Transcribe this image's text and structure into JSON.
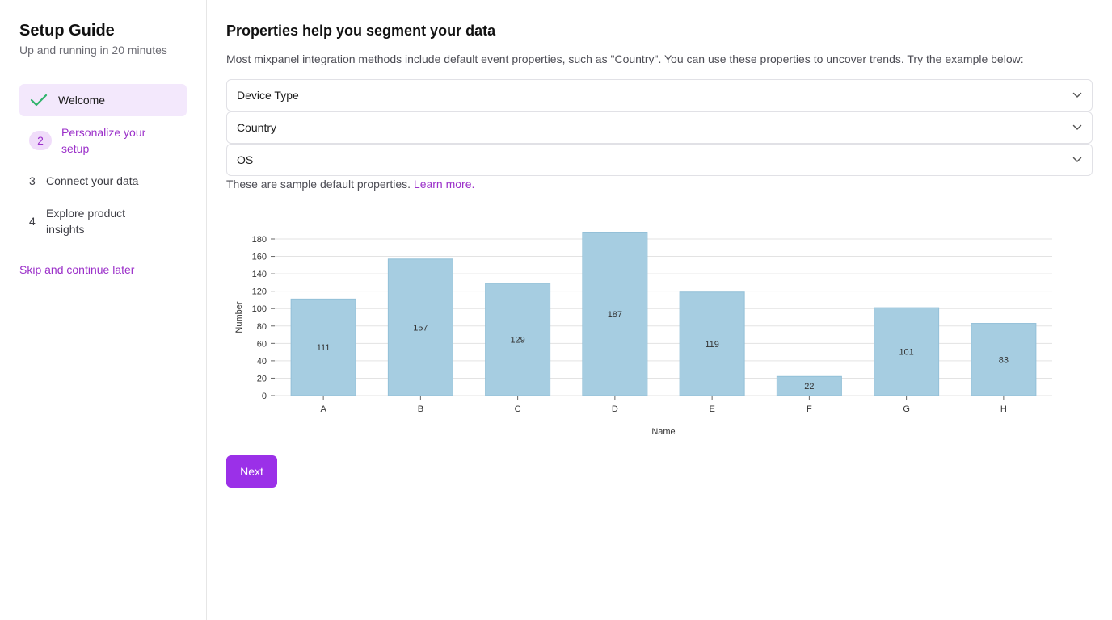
{
  "sidebar": {
    "title": "Setup Guide",
    "subtitle": "Up and running in 20 minutes",
    "steps": [
      {
        "number": "",
        "label": "Welcome",
        "status": "done"
      },
      {
        "number": "2",
        "label": "Personalize your setup",
        "status": "active"
      },
      {
        "number": "3",
        "label": "Connect your data",
        "status": "pending"
      },
      {
        "number": "4",
        "label": "Explore product insights",
        "status": "pending"
      }
    ],
    "skip_label": "Skip and continue later"
  },
  "main": {
    "title": "Properties help you segment your data",
    "description": "Most mixpanel integration methods include default event properties, such as \"Country\". You can use these properties to uncover trends. Try the example below:",
    "selects": [
      {
        "label": "Device Type"
      },
      {
        "label": "Country"
      },
      {
        "label": "OS"
      }
    ],
    "sample_note": "These are sample default properties.",
    "learn_more": "Learn more.",
    "next_label": "Next"
  },
  "colors": {
    "accent": "#9b30c9",
    "button": "#9b30e8",
    "bar": "#a6cde1",
    "check": "#2fb36b"
  },
  "chart_data": {
    "type": "bar",
    "categories": [
      "A",
      "B",
      "C",
      "D",
      "E",
      "F",
      "G",
      "H"
    ],
    "values": [
      111,
      157,
      129,
      187,
      119,
      22,
      101,
      83
    ],
    "xlabel": "Name",
    "ylabel": "Number",
    "ylim": [
      0,
      180
    ],
    "yticks": [
      0,
      20,
      40,
      60,
      80,
      100,
      120,
      140,
      160,
      180
    ],
    "grid": true,
    "data_labels": true
  }
}
